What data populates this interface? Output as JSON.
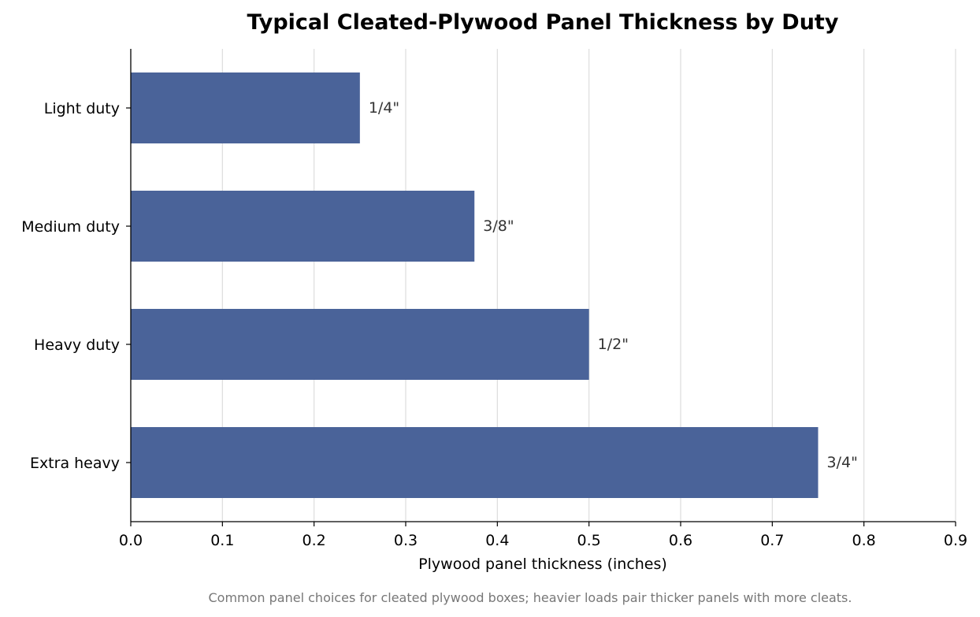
{
  "chart_data": {
    "type": "bar",
    "orientation": "horizontal",
    "title": "Typical Cleated-Plywood Panel Thickness by Duty",
    "xlabel": "Plywood panel thickness (inches)",
    "ylabel": "",
    "categories": [
      "Light duty",
      "Medium duty",
      "Heavy duty",
      "Extra heavy"
    ],
    "values": [
      0.25,
      0.375,
      0.5,
      0.75
    ],
    "data_labels": [
      "1/4\"",
      "3/8\"",
      "1/2\"",
      "3/4\""
    ],
    "xlim": [
      0,
      0.9
    ],
    "xticks": [
      0.0,
      0.1,
      0.2,
      0.3,
      0.4,
      0.5,
      0.6,
      0.7,
      0.8,
      0.9
    ],
    "xtick_labels": [
      "0.0",
      "0.1",
      "0.2",
      "0.3",
      "0.4",
      "0.5",
      "0.6",
      "0.7",
      "0.8",
      "0.9"
    ],
    "grid": "vertical",
    "legend": "none",
    "bar_color": "#4a6399",
    "caption": "Common panel choices for cleated plywood boxes; heavier loads pair thicker panels with more cleats."
  }
}
